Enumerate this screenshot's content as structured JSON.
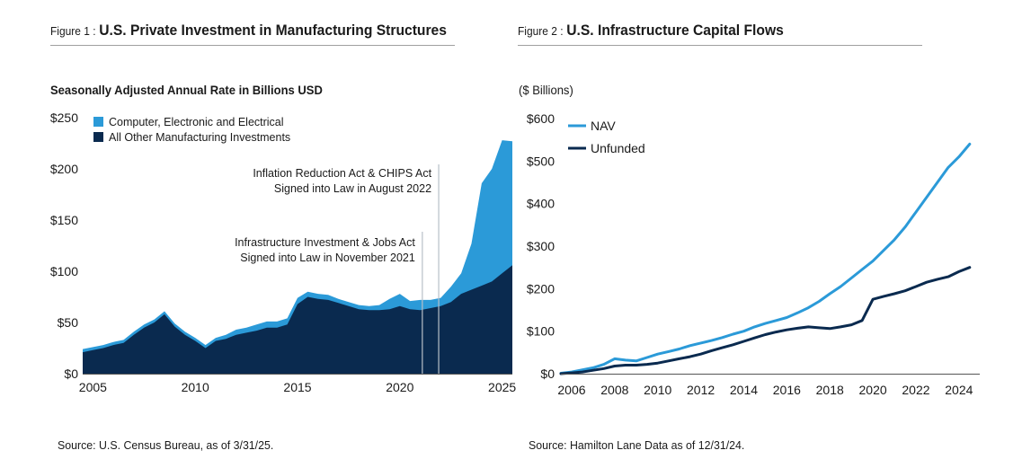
{
  "figure1": {
    "number": "Figure 1 :",
    "title": "U.S. Private Investment in Manufacturing Structures",
    "subtitle": "Seasonally Adjusted Annual Rate in Billions USD",
    "source": "Source: U.S. Census Bureau, as of 3/31/25."
  },
  "figure2": {
    "number": "Figure 2 :",
    "title": "U.S. Infrastructure Capital Flows",
    "subtitle": "($ Billions)",
    "source": "Source: Hamilton Lane Data as of 12/31/24."
  },
  "colors": {
    "light_blue": "#2b9ad8",
    "navy": "#0a2a4f",
    "annotation_line": "#9aa3ad"
  },
  "chart_data": [
    {
      "type": "area",
      "stacked": true,
      "title": "U.S. Private Investment in Manufacturing Structures",
      "ylabel": "Seasonally Adjusted Annual Rate in Billions USD",
      "xlim": [
        2004.5,
        2025.5
      ],
      "ylim": [
        0,
        250
      ],
      "yticks": [
        0,
        50,
        100,
        150,
        200,
        250
      ],
      "ytick_labels": [
        "$0",
        "$50",
        "$100",
        "$150",
        "$200",
        "$250"
      ],
      "xticks": [
        2005,
        2010,
        2015,
        2020,
        2025
      ],
      "xtick_labels": [
        "2005",
        "2010",
        "2015",
        "2020",
        "2025"
      ],
      "legend_position": "top-left",
      "x": [
        2004.5,
        2005.0,
        2005.5,
        2006.0,
        2006.5,
        2007.0,
        2007.5,
        2008.0,
        2008.5,
        2009.0,
        2009.5,
        2010.0,
        2010.5,
        2011.0,
        2011.5,
        2012.0,
        2012.5,
        2013.0,
        2013.5,
        2014.0,
        2014.5,
        2015.0,
        2015.5,
        2016.0,
        2016.5,
        2017.0,
        2017.5,
        2018.0,
        2018.5,
        2019.0,
        2019.5,
        2020.0,
        2020.5,
        2021.0,
        2021.5,
        2022.0,
        2022.5,
        2023.0,
        2023.5,
        2024.0,
        2024.5,
        2025.0,
        2025.5
      ],
      "series": [
        {
          "name": "All Other Manufacturing Investments",
          "color": "#0a2a4f",
          "values": [
            21,
            23,
            25,
            28,
            30,
            38,
            45,
            50,
            58,
            46,
            38,
            32,
            25,
            32,
            34,
            38,
            40,
            42,
            45,
            45,
            48,
            68,
            75,
            73,
            72,
            69,
            66,
            63,
            62,
            62,
            63,
            66,
            63,
            62,
            64,
            66,
            70,
            78,
            82,
            86,
            90,
            98,
            106
          ]
        },
        {
          "name": "Computer, Electronic and Electrical",
          "color": "#2b9ad8",
          "values": [
            3,
            3,
            3,
            3,
            3,
            3,
            3,
            3,
            3,
            3,
            3,
            3,
            3,
            3,
            4,
            5,
            5,
            6,
            6,
            6,
            6,
            6,
            5,
            5,
            5,
            4,
            4,
            4,
            4,
            5,
            10,
            12,
            8,
            10,
            8,
            8,
            15,
            20,
            45,
            100,
            110,
            130,
            121
          ]
        }
      ],
      "annotations": [
        {
          "x": 2021.9,
          "lines": [
            "Inflation Reduction Act & CHIPS Act",
            "Signed into Law in August 2022"
          ]
        },
        {
          "x": 2021.1,
          "lines": [
            "Infrastructure Investment & Jobs Act",
            "Signed into Law in November 2021"
          ]
        }
      ]
    },
    {
      "type": "line",
      "title": "U.S. Infrastructure Capital Flows",
      "ylabel": "($ Billions)",
      "xlim": [
        2005.5,
        2024.8
      ],
      "ylim": [
        0,
        600
      ],
      "yticks": [
        0,
        100,
        200,
        300,
        400,
        500,
        600
      ],
      "ytick_labels": [
        "$0",
        "$100",
        "$200",
        "$300",
        "$400",
        "$500",
        "$600"
      ],
      "xticks": [
        2006,
        2008,
        2010,
        2012,
        2014,
        2016,
        2018,
        2020,
        2022,
        2024
      ],
      "xtick_labels": [
        "2006",
        "2008",
        "2010",
        "2012",
        "2014",
        "2016",
        "2018",
        "2020",
        "2022",
        "2024"
      ],
      "legend_position": "top-left",
      "x": [
        2005.5,
        2006.0,
        2006.5,
        2007.0,
        2007.5,
        2008.0,
        2008.5,
        2009.0,
        2009.5,
        2010.0,
        2010.5,
        2011.0,
        2011.5,
        2012.0,
        2012.5,
        2013.0,
        2013.5,
        2014.0,
        2014.5,
        2015.0,
        2015.5,
        2016.0,
        2016.5,
        2017.0,
        2017.5,
        2018.0,
        2018.5,
        2019.0,
        2019.5,
        2020.0,
        2020.5,
        2021.0,
        2021.5,
        2022.0,
        2022.5,
        2023.0,
        2023.5,
        2024.0,
        2024.5
      ],
      "series": [
        {
          "name": "NAV",
          "color": "#2b9ad8",
          "values": [
            1,
            4,
            9,
            14,
            22,
            35,
            32,
            30,
            38,
            46,
            52,
            58,
            66,
            72,
            78,
            85,
            93,
            100,
            110,
            118,
            125,
            132,
            143,
            155,
            170,
            188,
            205,
            225,
            245,
            265,
            290,
            315,
            345,
            380,
            415,
            450,
            485,
            510,
            540
          ]
        },
        {
          "name": "Unfunded",
          "color": "#0a2a4f",
          "values": [
            0,
            2,
            4,
            8,
            12,
            18,
            20,
            20,
            22,
            25,
            30,
            35,
            40,
            46,
            54,
            61,
            68,
            76,
            84,
            92,
            98,
            103,
            107,
            110,
            108,
            106,
            110,
            115,
            125,
            175,
            182,
            188,
            195,
            205,
            215,
            222,
            228,
            240,
            250
          ]
        }
      ]
    }
  ]
}
